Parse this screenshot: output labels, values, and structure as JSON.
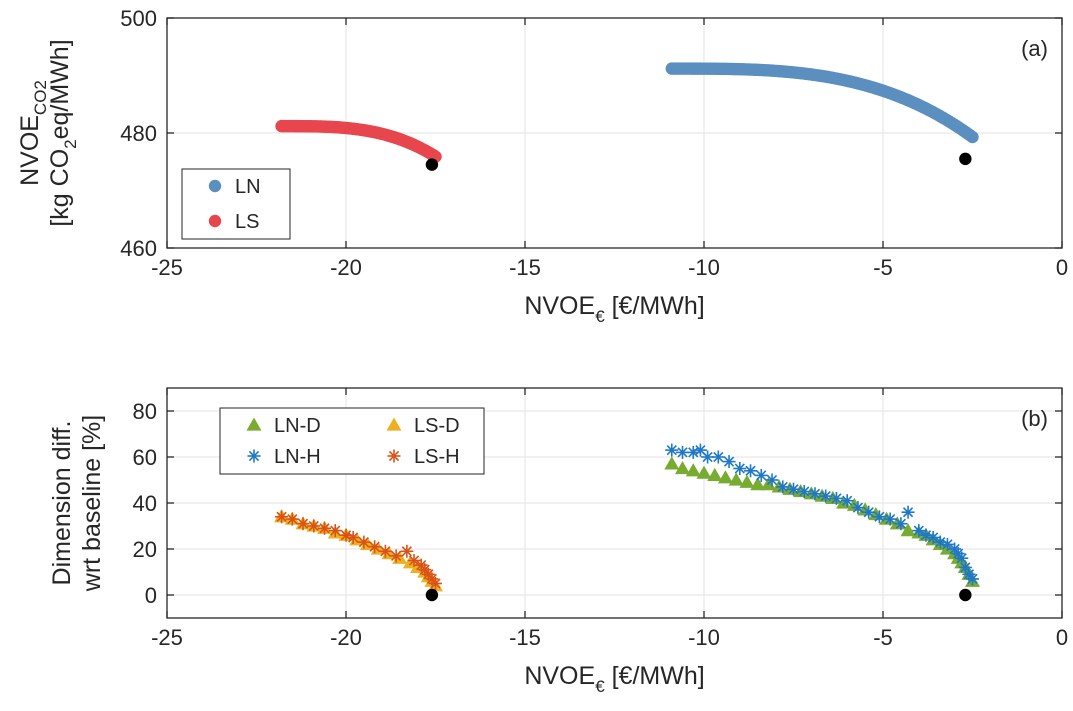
{
  "colors": {
    "LN": "#5b8fc0",
    "LS": "#e8464d",
    "LN-D": "#77ac30",
    "LS-D": "#edb120",
    "LN-H": "#1f77c8",
    "LS-H": "#d95319",
    "baseline": "#000000"
  },
  "chart_data": [
    {
      "type": "scatter",
      "panel_tag": "(a)",
      "xlabel": {
        "main": "NVOE",
        "sub": "€",
        "rest": " [€/MWh]"
      },
      "ylabel": {
        "line1_main": "NVOE",
        "line1_sub": "CO2",
        "line2_a": "[kg CO",
        "line2_sub": "2",
        "line2_b": "eq/MWh]"
      },
      "xlim": [
        -25,
        0
      ],
      "ylim": [
        460,
        500
      ],
      "xticks": [
        -25,
        -20,
        -15,
        -10,
        -5,
        0
      ],
      "yticks": [
        460,
        480,
        500
      ],
      "xtick_labels": [
        "-25",
        "-20",
        "-15",
        "-10",
        "-5",
        "0"
      ],
      "ytick_labels": [
        "460",
        "480",
        "500"
      ],
      "grid": true,
      "legend_placement": "bottom-left",
      "series": [
        {
          "name": "LN",
          "marker": "circle",
          "x_range": [
            -10.9,
            -2.5
          ],
          "y_start": 491.2,
          "y_end": 479.3,
          "count": 130
        },
        {
          "name": "LS",
          "marker": "circle",
          "x_range": [
            -21.8,
            -17.5
          ],
          "y_start": 481.2,
          "y_end": 475.9,
          "count": 90
        }
      ],
      "baseline_points": [
        {
          "x": -17.6,
          "y": 474.5
        },
        {
          "x": -2.7,
          "y": 475.5
        }
      ]
    },
    {
      "type": "scatter",
      "panel_tag": "(b)",
      "xlabel": {
        "main": "NVOE",
        "sub": "€",
        "rest": " [€/MWh]"
      },
      "ylabel": {
        "line1": "Dimension diff.",
        "line2": "wrt baseline [%]"
      },
      "xlim": [
        -25,
        0
      ],
      "ylim": [
        -10,
        90
      ],
      "xticks": [
        -25,
        -20,
        -15,
        -10,
        -5,
        0
      ],
      "yticks": [
        0,
        20,
        40,
        60,
        80
      ],
      "xtick_labels": [
        "-25",
        "-20",
        "-15",
        "-10",
        "-5",
        "0"
      ],
      "ytick_labels": [
        "0",
        "20",
        "40",
        "60",
        "80"
      ],
      "grid": true,
      "legend_placement": "top-left",
      "legend_order": [
        "LN-D",
        "LS-D",
        "LN-H",
        "LS-H"
      ],
      "series": [
        {
          "name": "LN-D",
          "marker": "triangle",
          "x": [
            -10.9,
            -10.6,
            -10.3,
            -10.0,
            -9.7,
            -9.4,
            -9.1,
            -8.8,
            -8.5,
            -8.2,
            -7.9,
            -7.6,
            -7.3,
            -7.0,
            -6.7,
            -6.4,
            -6.1,
            -5.8,
            -5.5,
            -5.2,
            -4.9,
            -4.6,
            -4.3,
            -4.0,
            -3.8,
            -3.6,
            -3.4,
            -3.2,
            -3.0,
            -2.9,
            -2.8,
            -2.7,
            -2.6,
            -2.5
          ],
          "y": [
            57,
            55,
            54,
            53,
            52,
            51,
            50,
            49,
            48,
            48,
            47,
            46,
            45,
            44,
            43,
            42,
            40,
            39,
            37,
            35,
            33,
            31,
            28,
            27,
            26,
            24,
            22,
            20,
            18,
            16,
            14,
            12,
            9,
            6
          ]
        },
        {
          "name": "LN-H",
          "marker": "star",
          "x": [
            -10.9,
            -10.6,
            -10.3,
            -10.1,
            -9.9,
            -9.6,
            -9.3,
            -9.0,
            -8.7,
            -8.4,
            -8.1,
            -7.8,
            -7.5,
            -7.2,
            -6.9,
            -6.6,
            -6.3,
            -6.0,
            -5.7,
            -5.4,
            -5.1,
            -4.8,
            -4.5,
            -4.3,
            -4.0,
            -3.8,
            -3.6,
            -3.4,
            -3.2,
            -3.0,
            -2.9,
            -2.8,
            -2.7,
            -2.6,
            -2.5
          ],
          "y": [
            63,
            62,
            62,
            63,
            60,
            60,
            58,
            55,
            54,
            52,
            50,
            47,
            46,
            45,
            44,
            43,
            42,
            41,
            38,
            36,
            34,
            33,
            31,
            36,
            28,
            26,
            25,
            23,
            22,
            20,
            18,
            16,
            12,
            9,
            7
          ]
        },
        {
          "name": "LS-D",
          "marker": "triangle",
          "x": [
            -21.8,
            -21.5,
            -21.2,
            -20.9,
            -20.6,
            -20.3,
            -20.0,
            -19.7,
            -19.4,
            -19.1,
            -18.8,
            -18.5,
            -18.2,
            -18.0,
            -17.8,
            -17.7,
            -17.6,
            -17.5
          ],
          "y": [
            34,
            33,
            31,
            30,
            29,
            27,
            26,
            24,
            22,
            20,
            18,
            16,
            14,
            12,
            10,
            8,
            6,
            4
          ]
        },
        {
          "name": "LS-H",
          "marker": "star",
          "x": [
            -21.8,
            -21.5,
            -21.2,
            -20.9,
            -20.6,
            -20.3,
            -20.0,
            -19.8,
            -19.5,
            -19.2,
            -18.9,
            -18.6,
            -18.3,
            -18.1,
            -17.9,
            -17.8,
            -17.7,
            -17.6,
            -17.5
          ],
          "y": [
            34,
            33,
            31,
            30,
            29,
            28,
            26,
            25,
            23,
            21,
            19,
            17,
            19,
            15,
            13,
            11,
            9,
            7,
            5
          ]
        }
      ],
      "baseline_points": [
        {
          "x": -17.6,
          "y": 0
        },
        {
          "x": -2.7,
          "y": 0
        }
      ]
    }
  ]
}
